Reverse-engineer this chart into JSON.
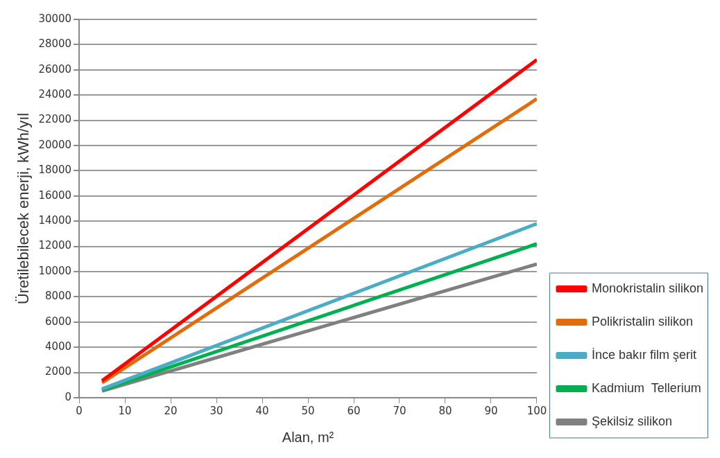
{
  "chart_data": {
    "type": "line",
    "xlabel": "Alan, m²",
    "ylabel": "Üretilebilecek enerji, kWh/yıl",
    "x": [
      5,
      100
    ],
    "series": [
      {
        "name": "Monokristalin silikon",
        "color": "#ff0000",
        "values": [
          1340,
          26800
        ]
      },
      {
        "name": "Polikristalin silikon",
        "color": "#e36c0a",
        "values": [
          1190,
          23700
        ]
      },
      {
        "name": "İnce bakır film şerit",
        "color": "#4bacc6",
        "values": [
          690,
          13800
        ]
      },
      {
        "name": "Kadmium  Tellerium",
        "color": "#00b050",
        "values": [
          610,
          12200
        ]
      },
      {
        "name": "Şekilsiz silikon",
        "color": "#808080",
        "values": [
          530,
          10600
        ]
      }
    ],
    "xlim": [
      0,
      100
    ],
    "xticks": [
      0,
      10,
      20,
      30,
      40,
      50,
      60,
      70,
      80,
      90,
      100
    ],
    "ylim": [
      0,
      30000
    ],
    "yticks": [
      0,
      2000,
      4000,
      6000,
      8000,
      10000,
      12000,
      14000,
      16000,
      18000,
      20000,
      22000,
      24000,
      26000,
      28000,
      30000
    ],
    "grid": "y",
    "legend": "right",
    "marker": "none",
    "line_style": "solid"
  }
}
